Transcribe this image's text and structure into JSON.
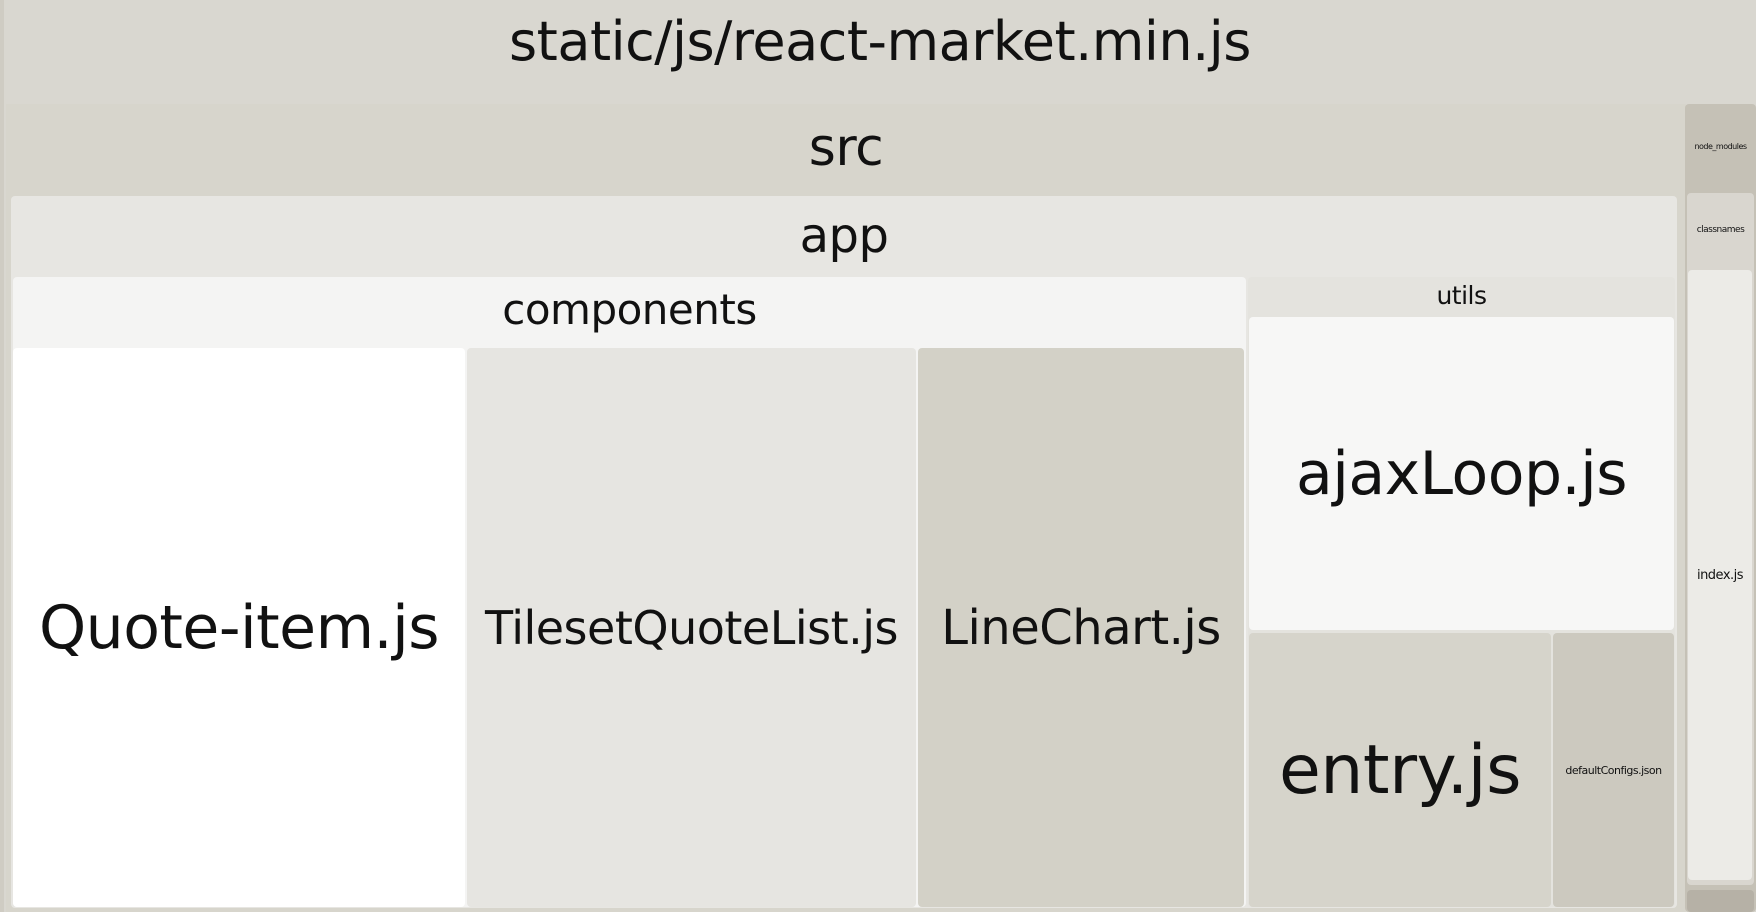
{
  "treemap": {
    "root": {
      "label": "static/js/react-market.min.js"
    },
    "src": {
      "label": "src"
    },
    "app": {
      "label": "app"
    },
    "components": {
      "label": "components"
    },
    "utils": {
      "label": "utils"
    },
    "files": {
      "quote_item": "Quote-item.js",
      "tileset_quote_list": "TilesetQuoteList.js",
      "line_chart": "LineChart.js",
      "ajax_loop": "ajaxLoop.js",
      "entry": "entry.js",
      "default_configs": "defaultConfigs.json"
    },
    "node_modules": {
      "label": "node_modules"
    },
    "classnames": {
      "label": "classnames"
    },
    "classnames_index": {
      "label": "index.js"
    }
  },
  "colors": {
    "root": "#d9d7d0",
    "src": "#d7d5cc",
    "app": "#e7e6e2",
    "components": "#f4f4f3",
    "utils": "#e4e3de",
    "quote_item": "#ffffff",
    "tileset_quote_list": "#e6e5e1",
    "line_chart": "#d3d1c7",
    "ajax_loop": "#f7f7f6",
    "entry": "#d6d4cb",
    "default_configs": "#ccc9bf",
    "node_modules": "#c5c1b6",
    "classnames": "#d9d6cf",
    "classnames_index": "#ecebe7"
  }
}
